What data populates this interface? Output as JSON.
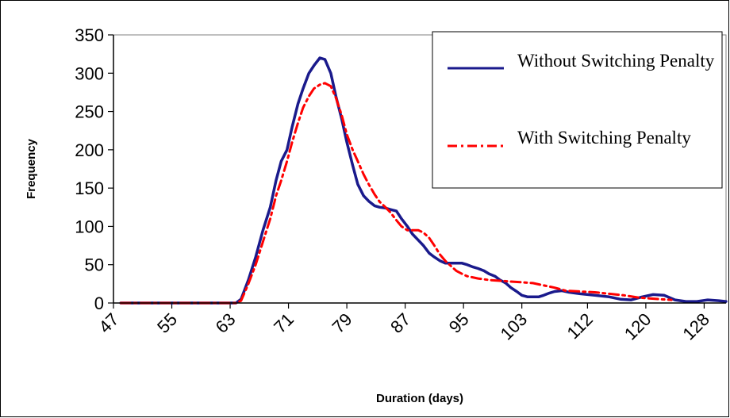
{
  "chart_data": {
    "type": "line",
    "title": "",
    "xlabel": "Duration (days)",
    "ylabel": "Frequency",
    "ylim": [
      0,
      350
    ],
    "xlim": [
      47,
      131
    ],
    "yticks": [
      0,
      50,
      100,
      150,
      200,
      250,
      300,
      350
    ],
    "xticks": [
      47,
      55,
      63,
      71,
      79,
      87,
      95,
      103,
      112,
      120,
      128
    ],
    "grid": false,
    "legend_position": "top-right",
    "series": [
      {
        "name": "Without Switching Penalty",
        "color": "#1a1a8c",
        "style": "solid",
        "points": [
          [
            48,
            0
          ],
          [
            52,
            0
          ],
          [
            56,
            0
          ],
          [
            60,
            0
          ],
          [
            63,
            0
          ],
          [
            63.8,
            0
          ],
          [
            64.5,
            5
          ],
          [
            65.5,
            30
          ],
          [
            66.5,
            60
          ],
          [
            67.5,
            95
          ],
          [
            68.5,
            125
          ],
          [
            69.3,
            160
          ],
          [
            70,
            185
          ],
          [
            70.8,
            200
          ],
          [
            71.5,
            230
          ],
          [
            72.3,
            260
          ],
          [
            73,
            280
          ],
          [
            73.8,
            300
          ],
          [
            74.5,
            310
          ],
          [
            75.3,
            320
          ],
          [
            76,
            318
          ],
          [
            76.8,
            300
          ],
          [
            77.5,
            270
          ],
          [
            78.3,
            240
          ],
          [
            79,
            210
          ],
          [
            79.8,
            180
          ],
          [
            80.5,
            155
          ],
          [
            81.3,
            140
          ],
          [
            82,
            133
          ],
          [
            82.8,
            127
          ],
          [
            83.5,
            125
          ],
          [
            84.3,
            124
          ],
          [
            85,
            122
          ],
          [
            85.8,
            120
          ],
          [
            86.5,
            110
          ],
          [
            87.3,
            100
          ],
          [
            88,
            90
          ],
          [
            88.8,
            82
          ],
          [
            89.5,
            75
          ],
          [
            90.3,
            65
          ],
          [
            91,
            60
          ],
          [
            91.8,
            55
          ],
          [
            92.5,
            52
          ],
          [
            93.3,
            52
          ],
          [
            94,
            52
          ],
          [
            94.8,
            52
          ],
          [
            95.5,
            50
          ],
          [
            96.3,
            47
          ],
          [
            97,
            45
          ],
          [
            97.8,
            42
          ],
          [
            98.5,
            38
          ],
          [
            99.3,
            35
          ],
          [
            100,
            30
          ],
          [
            100.8,
            26
          ],
          [
            101.5,
            20
          ],
          [
            102.3,
            15
          ],
          [
            103,
            10
          ],
          [
            103.8,
            8
          ],
          [
            104.5,
            8
          ],
          [
            105.3,
            8
          ],
          [
            106,
            10
          ],
          [
            106.8,
            13
          ],
          [
            107.5,
            15
          ],
          [
            108.5,
            16
          ],
          [
            109.5,
            14
          ],
          [
            111,
            12
          ],
          [
            113,
            10
          ],
          [
            115,
            8
          ],
          [
            116.5,
            5
          ],
          [
            118,
            4
          ],
          [
            119.5,
            8
          ],
          [
            121,
            11
          ],
          [
            122.5,
            10
          ],
          [
            124,
            4
          ],
          [
            125.5,
            2
          ],
          [
            127,
            2
          ],
          [
            128.5,
            4
          ],
          [
            130,
            3
          ],
          [
            131,
            2
          ]
        ]
      },
      {
        "name": "With Switching Penalty",
        "color": "#ff0000",
        "style": "dash-dot",
        "points": [
          [
            48,
            0
          ],
          [
            52,
            0
          ],
          [
            56,
            0
          ],
          [
            60,
            0
          ],
          [
            63,
            0
          ],
          [
            63.8,
            0
          ],
          [
            64.5,
            3
          ],
          [
            65.5,
            25
          ],
          [
            66.5,
            50
          ],
          [
            67.5,
            80
          ],
          [
            68.5,
            110
          ],
          [
            69.3,
            140
          ],
          [
            70,
            160
          ],
          [
            70.8,
            185
          ],
          [
            71.5,
            210
          ],
          [
            72.3,
            235
          ],
          [
            73,
            255
          ],
          [
            73.8,
            270
          ],
          [
            74.5,
            280
          ],
          [
            75.3,
            285
          ],
          [
            76,
            287
          ],
          [
            76.8,
            283
          ],
          [
            77.5,
            268
          ],
          [
            78.3,
            245
          ],
          [
            79,
            220
          ],
          [
            79.8,
            200
          ],
          [
            80.5,
            185
          ],
          [
            81.3,
            168
          ],
          [
            82,
            155
          ],
          [
            82.8,
            142
          ],
          [
            83.5,
            132
          ],
          [
            84.3,
            125
          ],
          [
            85,
            118
          ],
          [
            85.8,
            108
          ],
          [
            86.5,
            100
          ],
          [
            87.3,
            95
          ],
          [
            88,
            95
          ],
          [
            88.8,
            95
          ],
          [
            89.5,
            92
          ],
          [
            90.3,
            85
          ],
          [
            91,
            75
          ],
          [
            91.8,
            63
          ],
          [
            92.5,
            55
          ],
          [
            93.3,
            48
          ],
          [
            94,
            42
          ],
          [
            94.8,
            38
          ],
          [
            95.5,
            35
          ],
          [
            97,
            32
          ],
          [
            98.5,
            30
          ],
          [
            100,
            29
          ],
          [
            101.5,
            28
          ],
          [
            103,
            27
          ],
          [
            104.5,
            26
          ],
          [
            106,
            23
          ],
          [
            107.5,
            20
          ],
          [
            109,
            16
          ],
          [
            111,
            15
          ],
          [
            113,
            14
          ],
          [
            115,
            12
          ],
          [
            117,
            10
          ],
          [
            119,
            7
          ],
          [
            120.5,
            6
          ],
          [
            122,
            5
          ],
          [
            123.5,
            4
          ]
        ]
      }
    ]
  }
}
